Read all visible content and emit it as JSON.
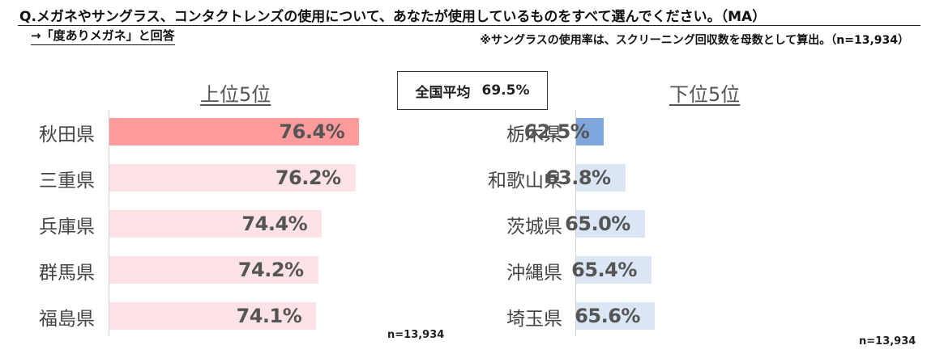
{
  "header": {
    "question": "Q.メガネやサングラス、コンタクトレンズの使用について、あなたが使用しているものをすべて選んでください。（MA）",
    "answer": "→「度ありメガネ」と回答",
    "note": "※サングラスの使用率は、スクリーニング回収数を母数として算出。（n=13,934）"
  },
  "average": {
    "label": "全国平均",
    "value": "69.5%"
  },
  "chart_data": [
    {
      "type": "bar",
      "orientation": "horizontal",
      "title": "上位5位",
      "categories": [
        "秋田県",
        "三重県",
        "兵庫県",
        "群馬県",
        "福島県"
      ],
      "values": [
        76.4,
        76.2,
        74.4,
        74.2,
        74.1
      ],
      "value_labels": [
        "76.4%",
        "76.2%",
        "74.4%",
        "74.2%",
        "74.1%"
      ],
      "highlight_color": "#ff9b9b",
      "bar_color": "#fde3e5",
      "n_label": "n=13,934"
    },
    {
      "type": "bar",
      "orientation": "horizontal",
      "title": "下位5位",
      "categories": [
        "栃木県",
        "和歌山県",
        "茨城県",
        "沖縄県",
        "埼玉県"
      ],
      "values": [
        62.5,
        63.8,
        65.0,
        65.4,
        65.6
      ],
      "value_labels": [
        "62.5%",
        "63.8%",
        "65.0%",
        "65.4%",
        "65.6%"
      ],
      "highlight_color": "#7ea6dc",
      "bar_color": "#dae6f4",
      "n_label": "n=13,934"
    }
  ]
}
